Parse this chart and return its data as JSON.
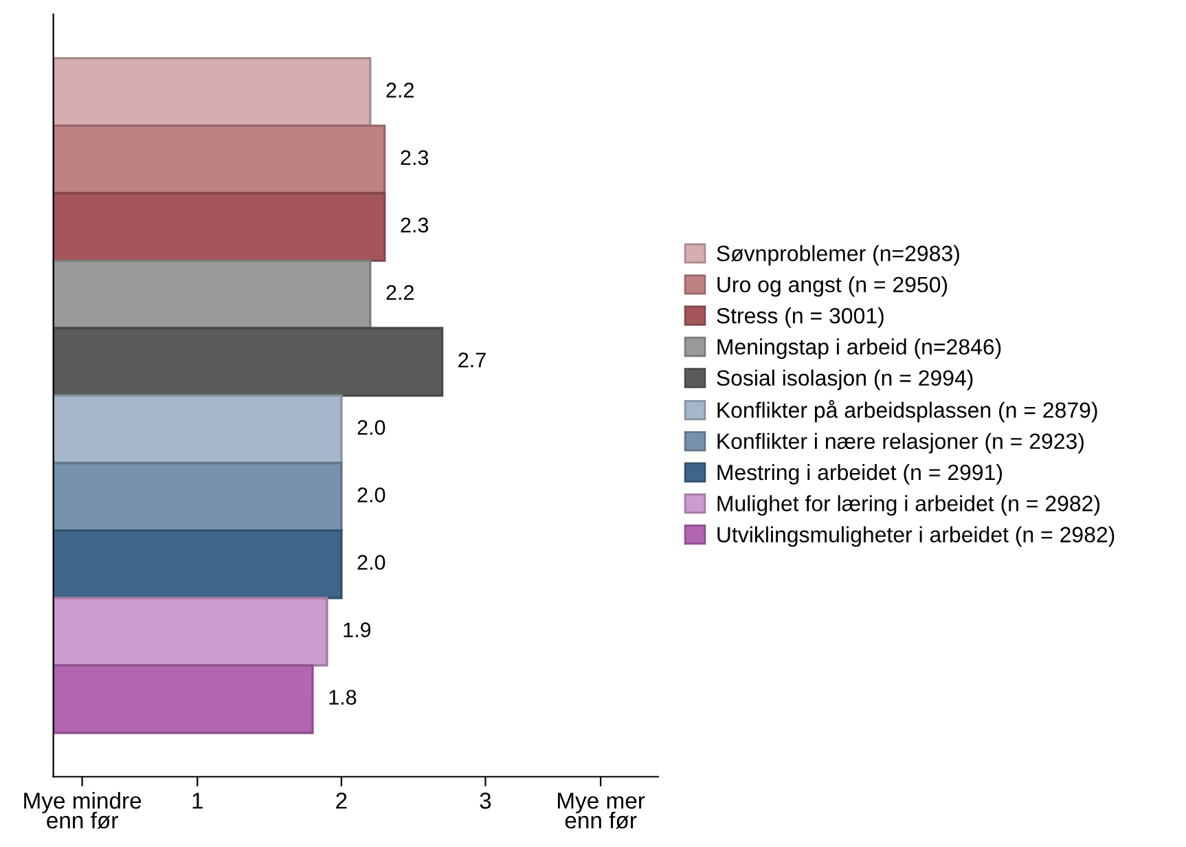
{
  "chart_data": {
    "type": "bar",
    "orientation": "horizontal",
    "categories": [
      null,
      null,
      null,
      null,
      null,
      null,
      null,
      null,
      null,
      null
    ],
    "xlim": [
      0,
      4.2
    ],
    "xticks": [
      {
        "value": 0.2,
        "label": "Mye mindre\nenn før"
      },
      1,
      2,
      3,
      {
        "value": 3.8,
        "label": "Mye mer\nenn før"
      }
    ],
    "tick_labels": "x",
    "legend": "right",
    "grid": false,
    "series": [
      {
        "name": "Søvnproblemer (n=2983)",
        "color": "#d4aeb0",
        "values": [
          2.2,
          null,
          null,
          null,
          null,
          null,
          null,
          null,
          null,
          null
        ],
        "value_labels": [
          "2.2",
          null,
          null,
          null,
          null,
          null,
          null,
          null,
          null,
          null
        ]
      },
      {
        "name": "Uro og angst (n = 2950)",
        "color": "#bf8284",
        "values": [
          null,
          2.3,
          null,
          null,
          null,
          null,
          null,
          null,
          null,
          null
        ],
        "value_labels": [
          null,
          "2.3",
          null,
          null,
          null,
          null,
          null,
          null,
          null,
          null
        ]
      },
      {
        "name": "Stress (n = 3001)",
        "color": "#a5565c",
        "values": [
          null,
          null,
          2.3,
          null,
          null,
          null,
          null,
          null,
          null,
          null
        ],
        "value_labels": [
          null,
          null,
          "2.3",
          null,
          null,
          null,
          null,
          null,
          null,
          null
        ]
      },
      {
        "name": "Meningstap i arbeid (n=2846)",
        "color": "#9a9a9a",
        "values": [
          null,
          null,
          null,
          2.2,
          null,
          null,
          null,
          null,
          null,
          null
        ],
        "value_labels": [
          null,
          null,
          null,
          "2.2",
          null,
          null,
          null,
          null,
          null,
          null
        ]
      },
      {
        "name": "Sosial isolasjon (n = 2994)",
        "color": "#5b5b5b",
        "values": [
          null,
          null,
          null,
          null,
          2.7,
          null,
          null,
          null,
          null,
          null
        ],
        "value_labels": [
          null,
          null,
          null,
          null,
          "2.7",
          null,
          null,
          null,
          null,
          null
        ]
      },
      {
        "name": "Konflikter på arbeidsplassen (n = 2879)",
        "color": "#a6b7cb",
        "values": [
          null,
          null,
          null,
          null,
          null,
          2.0,
          null,
          null,
          null,
          null
        ],
        "value_labels": [
          null,
          null,
          null,
          null,
          null,
          "2.0",
          null,
          null,
          null,
          null
        ]
      },
      {
        "name": "Konflikter i nære relasjoner (n = 2923)",
        "color": "#7792ab",
        "values": [
          null,
          null,
          null,
          null,
          null,
          null,
          2.0,
          null,
          null,
          null
        ],
        "value_labels": [
          null,
          null,
          null,
          null,
          null,
          null,
          "2.0",
          null,
          null,
          null
        ]
      },
      {
        "name": "Mestring i arbeidet (n = 2991)",
        "color": "#3f6589",
        "values": [
          null,
          null,
          null,
          null,
          null,
          null,
          null,
          2.0,
          null,
          null
        ],
        "value_labels": [
          null,
          null,
          null,
          null,
          null,
          null,
          null,
          "2.0",
          null,
          null
        ]
      },
      {
        "name": "Mulighet for læring i arbeidet (n = 2982)",
        "color": "#cc9acc",
        "values": [
          null,
          null,
          null,
          null,
          null,
          null,
          null,
          null,
          1.9,
          null
        ],
        "value_labels": [
          null,
          null,
          null,
          null,
          null,
          null,
          null,
          null,
          "1.9",
          null
        ]
      },
      {
        "name": "Utviklingsmuligheter i arbeidet (n = 2982)",
        "color": "#b265b0",
        "values": [
          null,
          null,
          null,
          null,
          null,
          null,
          null,
          null,
          null,
          1.8
        ],
        "value_labels": [
          null,
          null,
          null,
          null,
          null,
          null,
          null,
          null,
          null,
          "1.8"
        ]
      }
    ]
  }
}
